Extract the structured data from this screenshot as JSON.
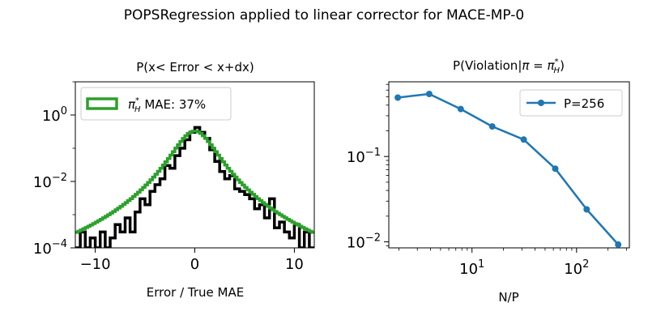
{
  "figure_title": "POPSRegression applied to linear corrector for MACE-MP-0",
  "colors": {
    "hist": "#000000",
    "fit": "#2ca02c",
    "line": "#1f77b4"
  },
  "chart_data": [
    {
      "type": "histogram",
      "title": "P(x< Error < x+dx)",
      "xlabel": "Error / True MAE",
      "ylabel": "",
      "xlim": [
        -12,
        12
      ],
      "ylim_log10": [
        -4,
        1
      ],
      "yscale": "log",
      "x_ticks": [
        -10,
        0,
        10
      ],
      "x_tick_labels": [
        "−10",
        "0",
        "10"
      ],
      "y_ticks_log10": [
        -4,
        -2,
        0
      ],
      "legend": {
        "symbol": "π",
        "sup": "*",
        "sub": "H",
        "text": "MAE: 37%",
        "position": "upper left"
      },
      "fit_curve": {
        "peak": 0.33,
        "scale": 1.2,
        "shape": "student-t",
        "nu": 3.0
      },
      "histogram": {
        "edges": [
          -12,
          -11.5,
          -11,
          -10.5,
          -10,
          -9.5,
          -9,
          -8.5,
          -8,
          -7.5,
          -7,
          -6.5,
          -6,
          -5.5,
          -5,
          -4.5,
          -4,
          -3.5,
          -3,
          -2.5,
          -2,
          -1.5,
          -1,
          -0.5,
          0,
          0.5,
          1,
          1.5,
          2,
          2.5,
          3,
          3.5,
          4,
          4.5,
          5,
          5.5,
          6,
          6.5,
          7,
          7.5,
          8,
          8.5,
          9,
          9.5,
          10,
          10.5,
          11,
          11.5,
          12
        ],
        "counts": [
          0.0001,
          0.0003,
          0.0001,
          0.0002,
          0.0001,
          0.0003,
          0.0001,
          0.0002,
          0.0005,
          0.0003,
          0.0008,
          0.0003,
          0.0012,
          0.003,
          0.002,
          0.005,
          0.008,
          0.012,
          0.03,
          0.025,
          0.06,
          0.1,
          0.18,
          0.3,
          0.42,
          0.3,
          0.2,
          0.09,
          0.04,
          0.02,
          0.012,
          0.015,
          0.006,
          0.005,
          0.004,
          0.003,
          0.0015,
          0.002,
          0.0008,
          0.003,
          0.0004,
          0.0006,
          0.0003,
          0.0002,
          0.0005,
          0.0001,
          0.0003,
          0.0001
        ]
      }
    },
    {
      "type": "line",
      "title": "P(Violation|π = πₕ*)",
      "title_parts": {
        "main": "P(Violation|",
        "symbol": "π",
        "eq": " = ",
        "sup": "*",
        "sub": "H",
        "close": ")"
      },
      "xlabel": "N/P",
      "ylabel": "",
      "xscale": "log",
      "yscale": "log",
      "xlim": [
        1.6,
        320
      ],
      "ylim": [
        0.0085,
        0.75
      ],
      "x_ticks_log10": [
        1,
        2
      ],
      "y_ticks_log10": [
        -2,
        -1
      ],
      "series": [
        {
          "name": "P=256",
          "x": [
            1.95,
            3.9,
            7.8,
            15.6,
            31.25,
            62.5,
            125,
            250
          ],
          "y": [
            0.49,
            0.54,
            0.36,
            0.225,
            0.158,
            0.072,
            0.024,
            0.0093
          ]
        }
      ]
    }
  ]
}
